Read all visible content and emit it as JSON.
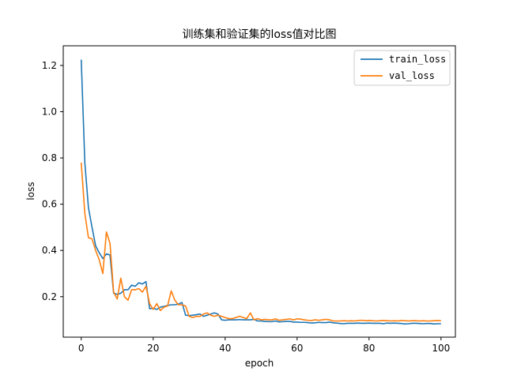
{
  "chart_data": {
    "type": "line",
    "title": "训练集和验证集的loss值对比图",
    "xlabel": "epoch",
    "ylabel": "loss",
    "xlim": [
      -5,
      104
    ],
    "ylim": [
      0.025,
      1.285
    ],
    "xticks": [
      0,
      20,
      40,
      60,
      80,
      100
    ],
    "yticks": [
      0.2,
      0.4,
      0.6,
      0.8,
      1.0,
      1.2
    ],
    "ytick_labels": [
      "0.2",
      "0.4",
      "0.6",
      "0.8",
      "1.0",
      "1.2"
    ],
    "grid": false,
    "legend_position": "top-right",
    "series": [
      {
        "name": "train_loss",
        "color": "#1f77b4",
        "values": [
          1.225,
          0.78,
          0.585,
          0.5,
          0.42,
          0.39,
          0.365,
          0.385,
          0.38,
          0.215,
          0.21,
          0.215,
          0.23,
          0.23,
          0.25,
          0.245,
          0.26,
          0.255,
          0.265,
          0.148,
          0.15,
          0.145,
          0.155,
          0.158,
          0.162,
          0.165,
          0.165,
          0.168,
          0.175,
          0.12,
          0.118,
          0.12,
          0.122,
          0.125,
          0.115,
          0.12,
          0.125,
          0.13,
          0.125,
          0.1,
          0.098,
          0.1,
          0.1,
          0.1,
          0.101,
          0.1,
          0.1,
          0.1,
          0.102,
          0.095,
          0.095,
          0.093,
          0.092,
          0.092,
          0.095,
          0.091,
          0.092,
          0.093,
          0.093,
          0.09,
          0.09,
          0.089,
          0.089,
          0.088,
          0.086,
          0.087,
          0.089,
          0.088,
          0.088,
          0.09,
          0.087,
          0.086,
          0.084,
          0.083,
          0.085,
          0.085,
          0.085,
          0.086,
          0.085,
          0.085,
          0.086,
          0.085,
          0.085,
          0.085,
          0.083,
          0.086,
          0.085,
          0.086,
          0.085,
          0.084,
          0.082,
          0.083,
          0.085,
          0.085,
          0.084,
          0.083,
          0.084,
          0.084,
          0.082,
          0.083,
          0.083
        ]
      },
      {
        "name": "val_loss",
        "color": "#ff7f0e",
        "values": [
          0.78,
          0.56,
          0.455,
          0.45,
          0.4,
          0.36,
          0.3,
          0.48,
          0.43,
          0.22,
          0.19,
          0.28,
          0.2,
          0.185,
          0.23,
          0.23,
          0.235,
          0.22,
          0.245,
          0.17,
          0.145,
          0.17,
          0.14,
          0.155,
          0.16,
          0.225,
          0.185,
          0.165,
          0.165,
          0.16,
          0.115,
          0.11,
          0.115,
          0.115,
          0.125,
          0.13,
          0.12,
          0.115,
          0.12,
          0.115,
          0.11,
          0.105,
          0.105,
          0.11,
          0.115,
          0.11,
          0.105,
          0.13,
          0.1,
          0.105,
          0.1,
          0.102,
          0.1,
          0.1,
          0.104,
          0.098,
          0.1,
          0.102,
          0.104,
          0.1,
          0.104,
          0.103,
          0.1,
          0.098,
          0.097,
          0.1,
          0.098,
          0.1,
          0.102,
          0.1,
          0.095,
          0.095,
          0.095,
          0.096,
          0.095,
          0.096,
          0.095,
          0.097,
          0.098,
          0.096,
          0.097,
          0.096,
          0.095,
          0.096,
          0.097,
          0.096,
          0.095,
          0.096,
          0.095,
          0.097,
          0.096,
          0.095,
          0.096,
          0.096,
          0.095,
          0.096,
          0.095,
          0.095,
          0.096,
          0.097,
          0.096
        ]
      }
    ]
  }
}
